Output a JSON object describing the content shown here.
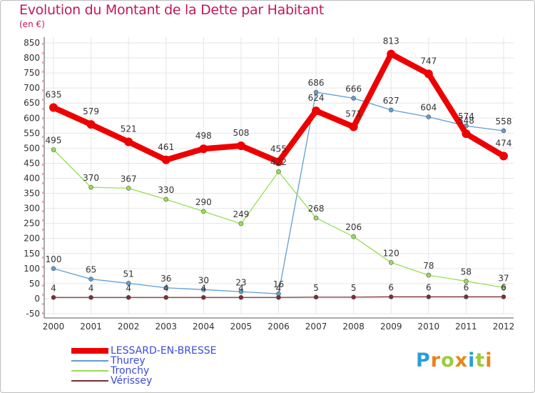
{
  "chart_data": {
    "type": "line",
    "title": "Evolution du Montant de la Dette par Habitant",
    "subtitle": "(en €)",
    "xlabel": "",
    "ylabel": "",
    "x": [
      "2000",
      "2001",
      "2002",
      "2003",
      "2004",
      "2005",
      "2006",
      "2007",
      "2008",
      "2009",
      "2010",
      "2011",
      "2012"
    ],
    "ylim": [
      -50,
      850
    ],
    "yticks": [
      -50,
      0,
      50,
      100,
      150,
      200,
      250,
      300,
      350,
      400,
      450,
      500,
      550,
      600,
      650,
      700,
      750,
      800,
      850
    ],
    "grid": true,
    "legend_position": "bottom-left",
    "series": [
      {
        "name": "LESSARD-EN-BRESSE",
        "color": "#ee0000",
        "values": [
          635,
          579,
          521,
          461,
          498,
          508,
          455,
          624,
          571,
          813,
          747,
          548,
          474
        ],
        "labels": [
          "635",
          "579",
          "521",
          "461",
          "498",
          "508",
          "455",
          "624",
          "571",
          "813",
          "747",
          "548",
          "474"
        ]
      },
      {
        "name": "Thurey",
        "color": "#5f9ed3",
        "values": [
          100,
          65,
          51,
          36,
          30,
          23,
          16,
          686,
          666,
          627,
          604,
          574,
          558
        ],
        "labels": [
          "100",
          "65",
          "51",
          "36",
          "30",
          "23",
          "16",
          "686",
          "666",
          "627",
          "604",
          "574",
          "558"
        ]
      },
      {
        "name": "Tronchy",
        "color": "#99dd55",
        "values": [
          495,
          370,
          367,
          330,
          290,
          249,
          422,
          268,
          206,
          120,
          78,
          58,
          37
        ],
        "labels": [
          "495",
          "370",
          "367",
          "330",
          "290",
          "249",
          "422",
          "268",
          "206",
          "120",
          "78",
          "58",
          "37"
        ]
      },
      {
        "name": "Vérissey",
        "color": "#7a2e35",
        "values": [
          4,
          4,
          4,
          4,
          4,
          4,
          4,
          5,
          5,
          6,
          6,
          6,
          6
        ],
        "labels": [
          "4",
          "4",
          "4",
          "4",
          "4",
          "4",
          "4",
          "5",
          "5",
          "6",
          "6",
          "6",
          "6"
        ]
      }
    ]
  },
  "logo": {
    "letters": [
      "P",
      "r",
      "o",
      "x",
      "i",
      "t",
      "i"
    ],
    "colors": [
      "#2a9fd6",
      "#e8841a",
      "#9ccc3c",
      "#e8841a",
      "#2a9fd6",
      "#9ccc3c",
      "#e8841a"
    ]
  }
}
